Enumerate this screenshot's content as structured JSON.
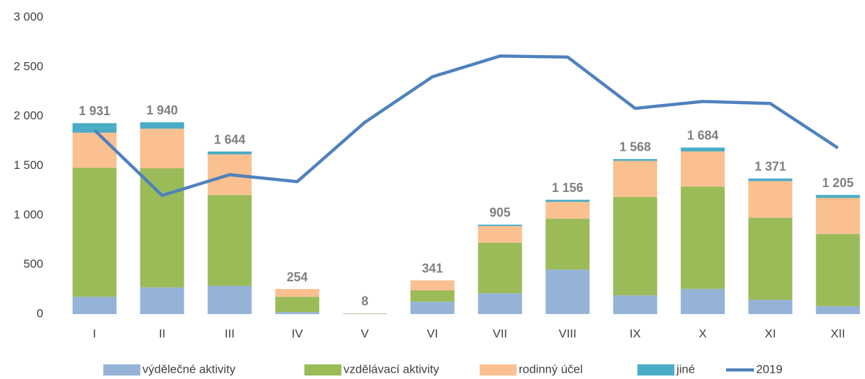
{
  "chart_data": {
    "type": "bar",
    "categories": [
      "I",
      "II",
      "III",
      "IV",
      "V",
      "VI",
      "VII",
      "VIII",
      "IX",
      "X",
      "XI",
      "XII"
    ],
    "series": [
      {
        "name": "výdělečné aktivity",
        "color": "#95b3d7",
        "values": [
          175,
          270,
          285,
          20,
          3,
          125,
          210,
          450,
          190,
          255,
          145,
          80
        ]
      },
      {
        "name": "vzdělávací aktivity",
        "color": "#9bbb59",
        "values": [
          1305,
          1205,
          920,
          155,
          3,
          115,
          510,
          515,
          995,
          1035,
          830,
          730
        ]
      },
      {
        "name": "rodinný účel",
        "color": "#fac090",
        "values": [
          355,
          400,
          410,
          79,
          2,
          101,
          170,
          170,
          365,
          355,
          370,
          365
        ]
      },
      {
        "name": "jiné",
        "color": "#4bacc6",
        "values": [
          96,
          65,
          29,
          0,
          0,
          0,
          15,
          21,
          18,
          39,
          26,
          30
        ]
      },
      {
        "name": "2019",
        "color": "#4f81bd",
        "type": "line",
        "values": [
          1860,
          1200,
          1410,
          1340,
          1940,
          2400,
          2610,
          2600,
          2080,
          2150,
          2130,
          1680
        ]
      }
    ],
    "totals": [
      1931,
      1940,
      1644,
      254,
      8,
      341,
      905,
      1156,
      1568,
      1684,
      1371,
      1205
    ],
    "total_labels": [
      "1 931",
      "1 940",
      "1 644",
      "254",
      "8",
      "341",
      "905",
      "1 156",
      "1 568",
      "1 684",
      "1 371",
      "1 205"
    ],
    "stacked": true,
    "ylim": [
      0,
      3000
    ],
    "yticks": [
      0,
      500,
      {
        "value": 1000,
        "label": "1 000"
      },
      {
        "value": 1500,
        "label": "1 500"
      },
      {
        "value": 2000,
        "label": "2 000"
      },
      {
        "value": 2500,
        "label": "2 500"
      },
      {
        "value": 3000,
        "label": "3 000"
      }
    ],
    "grid": false,
    "legend": "bottom"
  }
}
